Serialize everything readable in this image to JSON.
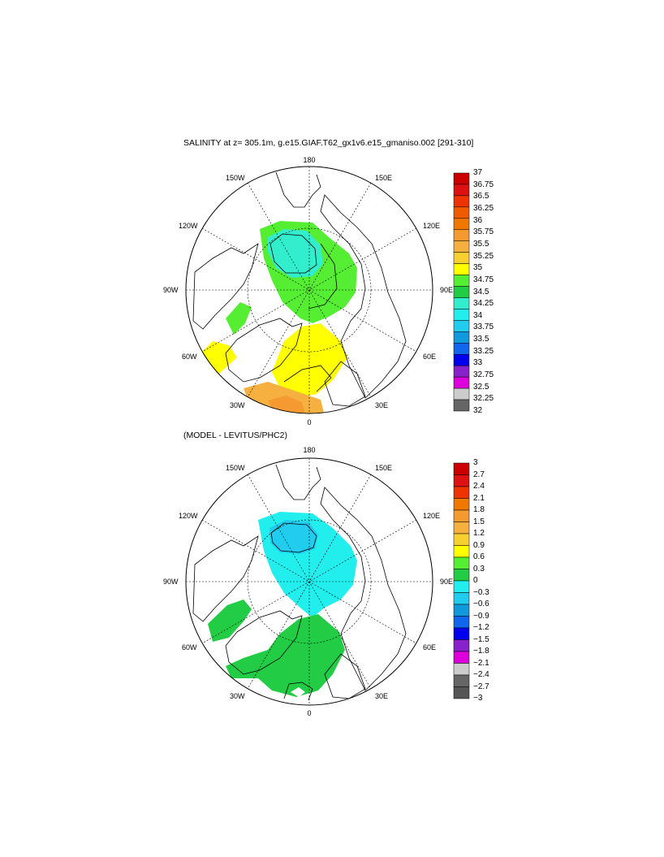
{
  "top_panel": {
    "title": "SALINITY at z= 305.1m, g.e15.GIAF.T62_gx1v6.e15_gmaniso.002 [291-310]",
    "lon_labels": {
      "top": "180",
      "top_left": "150W",
      "top_right": "150E",
      "upper_left": "120W",
      "upper_right": "120E",
      "left": "90W",
      "right": "90E",
      "lower_left": "60W",
      "lower_right": "60E",
      "bottom_left": "30W",
      "bottom_right": "30E",
      "bottom": "0"
    },
    "colorbar": {
      "labels": [
        "37",
        "36.75",
        "36.5",
        "36.25",
        "36",
        "35.75",
        "35.5",
        "35.25",
        "35",
        "34.75",
        "34.5",
        "34.25",
        "34",
        "33.75",
        "33.5",
        "33.25",
        "33",
        "32.75",
        "32.5",
        "32.25",
        "32"
      ],
      "colors": [
        "#cc0000",
        "#dd1111",
        "#ee3300",
        "#f05a00",
        "#f07800",
        "#f59a30",
        "#f5b040",
        "#f8d030",
        "#ffff00",
        "#55ee33",
        "#22cc44",
        "#33eecc",
        "#22eeee",
        "#22ccee",
        "#1199dd",
        "#1166ee",
        "#0000ee",
        "#8822cc",
        "#dd00dd",
        "#cccccc",
        "#666666"
      ]
    }
  },
  "bottom_panel": {
    "title": "(MODEL - LEVITUS/PHC2)",
    "lon_labels": {
      "top": "180",
      "top_left": "150W",
      "top_right": "150E",
      "upper_left": "120W",
      "upper_right": "120E",
      "left": "90W",
      "right": "90E",
      "lower_left": "60W",
      "lower_right": "60E",
      "bottom_left": "30W",
      "bottom_right": "30E",
      "bottom": "0"
    },
    "colorbar": {
      "labels": [
        "3",
        "2.7",
        "2.4",
        "2.1",
        "1.8",
        "1.5",
        "1.2",
        "0.9",
        "0.6",
        "0.3",
        "0",
        "−0.3",
        "−0.6",
        "−0.9",
        "−1.2",
        "−1.5",
        "−1.8",
        "−2.1",
        "−2.4",
        "−2.7",
        "−3"
      ],
      "colors": [
        "#cc0000",
        "#dd1111",
        "#ee3300",
        "#f07800",
        "#f59a30",
        "#f5b040",
        "#f8d030",
        "#ffff00",
        "#55ee33",
        "#22cc44",
        "#22eeee",
        "#22ccee",
        "#1199dd",
        "#1166ee",
        "#0000ee",
        "#8822cc",
        "#dd00dd",
        "#cccccc",
        "#666666",
        "#555555"
      ]
    }
  }
}
